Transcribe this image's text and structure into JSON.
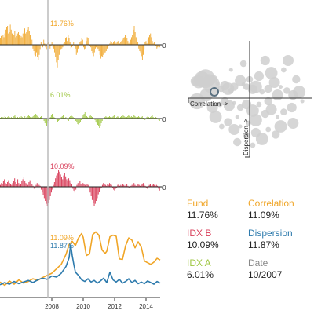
{
  "chart_data": [
    {
      "type": "bar",
      "name": "Fund",
      "color": "#f0a526",
      "marker_label": "11.76%",
      "zero_label": "0",
      "x_range": [
        2004.7,
        2014.9
      ],
      "values": [
        5,
        7,
        4,
        8,
        6,
        9,
        12,
        14,
        15,
        9,
        10,
        16,
        12,
        9,
        14,
        8,
        11,
        6,
        7,
        9,
        10,
        8,
        5,
        7,
        6,
        9,
        11,
        13,
        9,
        10,
        12,
        14,
        11,
        8,
        6,
        4,
        -3,
        -5,
        -8,
        -9,
        -6,
        -10,
        -12,
        -8,
        -4,
        2,
        3,
        -2,
        4,
        1,
        -2,
        -4,
        1,
        2,
        -1,
        -3,
        -1,
        2,
        -2,
        -3,
        -6,
        -10,
        -14,
        -18,
        -12,
        -8,
        -6,
        -4,
        -3,
        -2,
        1,
        2,
        5,
        6,
        3,
        8,
        5,
        2,
        -3,
        -2,
        -1,
        2,
        -1,
        -3,
        -8,
        -6,
        -3,
        -1,
        2,
        3,
        5,
        4,
        -2,
        -4,
        -3,
        3,
        6,
        5,
        2,
        -1,
        -2,
        -5,
        -7,
        -9,
        -6,
        -3,
        -2,
        -4,
        -3,
        -5,
        -8,
        -11,
        -9,
        -10,
        -8,
        -7,
        -6,
        -5,
        -3,
        -2,
        -1,
        1,
        3,
        2,
        1,
        2,
        3,
        2,
        1,
        2,
        3,
        4,
        1,
        2,
        3,
        4,
        5,
        6,
        8,
        7,
        5,
        3,
        1,
        2,
        4,
        6,
        8,
        12,
        15,
        10,
        6,
        3,
        2,
        -3,
        -5,
        -6,
        -9,
        -12,
        -8,
        -4,
        2,
        3,
        1,
        4,
        6,
        8,
        9,
        6,
        3,
        1,
        2,
        4,
        -1,
        -3,
        -2,
        -1,
        -2
      ],
      "ylim": [
        -22,
        22
      ]
    },
    {
      "type": "bar",
      "name": "IDX A",
      "color": "#9dc63f",
      "marker_label": "6.01%",
      "zero_label": "0",
      "x_range": [
        2004.7,
        2014.9
      ],
      "values": [
        1,
        2,
        1,
        2,
        1,
        3,
        2,
        1,
        2,
        3,
        2,
        1,
        2,
        1,
        2,
        3,
        4,
        2,
        1,
        2,
        1,
        2,
        1,
        3,
        2,
        1,
        2,
        3,
        1,
        2,
        3,
        4,
        3,
        2,
        1,
        2,
        3,
        4,
        5,
        6,
        4,
        3,
        2,
        1,
        2,
        3,
        1,
        -1,
        -3,
        -6,
        -8,
        -10,
        -6,
        -3,
        -1,
        2,
        4,
        6,
        3,
        2,
        1,
        -1,
        -2,
        -4,
        -3,
        -2,
        -1,
        2,
        3,
        4,
        2,
        1,
        2,
        -1,
        -2,
        -3,
        2,
        3,
        4,
        3,
        2,
        1,
        -2,
        -3,
        -5,
        -7,
        -8,
        -6,
        -4,
        -2,
        2,
        4,
        6,
        8,
        5,
        3,
        2,
        1,
        3,
        4,
        3,
        2,
        1,
        -1,
        -2,
        -4,
        -6,
        -8,
        -10,
        -12,
        -9,
        -6,
        -3,
        -1,
        1,
        2,
        3,
        2,
        1,
        2,
        3,
        2,
        1,
        2,
        3,
        4,
        2,
        1,
        2,
        3,
        2,
        1,
        2,
        3,
        2,
        4,
        3,
        2,
        3,
        2,
        3,
        4,
        3,
        2,
        3,
        2,
        4,
        5,
        3,
        2,
        1,
        2,
        3,
        2,
        1,
        2,
        3,
        1,
        -1,
        -2,
        -1,
        2,
        3,
        2,
        1,
        2,
        3,
        4,
        2,
        1,
        3,
        2,
        1,
        -1,
        -2,
        -3
      ],
      "ylim": [
        -22,
        22
      ]
    },
    {
      "type": "bar",
      "name": "IDX B",
      "color": "#d9415c",
      "marker_label": "10.09%",
      "zero_label": "0",
      "x_range": [
        2004.7,
        2014.9
      ],
      "values": [
        2,
        4,
        3,
        6,
        8,
        4,
        3,
        5,
        7,
        4,
        3,
        2,
        4,
        6,
        9,
        5,
        3,
        8,
        4,
        2,
        3,
        6,
        8,
        10,
        6,
        4,
        3,
        2,
        5,
        7,
        4,
        3,
        1,
        -2,
        -1,
        2,
        4,
        3,
        2,
        1,
        -3,
        -6,
        -9,
        -12,
        -15,
        -18,
        -20,
        -17,
        -14,
        -10,
        -6,
        -3,
        2,
        5,
        9,
        12,
        14,
        18,
        16,
        13,
        10,
        8,
        12,
        15,
        11,
        8,
        6,
        9,
        7,
        4,
        3,
        -2,
        -4,
        -6,
        -3,
        2,
        4,
        5,
        6,
        3,
        2,
        4,
        3,
        2,
        1,
        3,
        2,
        -3,
        -6,
        -10,
        -14,
        -17,
        -20,
        -18,
        -15,
        -12,
        -8,
        -5,
        -2,
        -1,
        2,
        4,
        3,
        2,
        1,
        3,
        2,
        4,
        3,
        2,
        -1,
        -3,
        -4,
        -2,
        -1,
        2,
        3,
        1,
        2,
        1,
        3,
        2,
        1,
        2,
        3,
        1,
        -1,
        -2,
        1,
        2,
        3,
        4,
        2,
        1,
        2,
        3,
        2,
        1,
        2,
        3,
        4,
        2,
        1,
        -1,
        -2,
        1,
        2,
        3,
        1,
        2,
        3,
        2,
        1,
        2,
        1,
        -2,
        -4
      ],
      "ylim": [
        -22,
        22
      ]
    },
    {
      "type": "line",
      "xlim": [
        2004.7,
        2014.9
      ],
      "ylim": [
        0,
        13.8
      ],
      "x_ticks": [
        2008,
        2010,
        2012,
        2014
      ],
      "x_tick_labels": [
        "2008",
        "2010",
        "2012",
        "2014"
      ],
      "series": [
        {
          "name": "Correlation",
          "color": "#f0a526",
          "end_label": "11.09%",
          "x": [
            2004.7,
            2005.0,
            2005.3,
            2005.6,
            2005.9,
            2006.2,
            2006.5,
            2006.8,
            2007.1,
            2007.4,
            2007.7,
            2008.0,
            2008.3,
            2008.6,
            2008.9,
            2009.1,
            2009.3,
            2009.5,
            2009.7,
            2009.9,
            2010.0,
            2010.2,
            2010.4,
            2010.6,
            2010.8,
            2011.0,
            2011.2,
            2011.4,
            2011.5,
            2011.7,
            2011.9,
            2012.1,
            2012.3,
            2012.5,
            2012.7,
            2012.9,
            2013.1,
            2013.3,
            2013.5,
            2013.7,
            2013.9,
            2014.1,
            2014.3,
            2014.5,
            2014.7,
            2014.9
          ],
          "y": [
            2.8,
            2.2,
            3.0,
            2.4,
            3.2,
            2.6,
            2.9,
            3.4,
            3.1,
            3.6,
            4.0,
            4.4,
            5.2,
            6.0,
            7.8,
            9.6,
            10.2,
            9.4,
            10.8,
            11.6,
            10.9,
            7.6,
            7.9,
            11.4,
            11.9,
            11.3,
            8.6,
            8.0,
            8.4,
            11.0,
            11.3,
            11.1,
            7.0,
            6.9,
            9.4,
            10.8,
            10.4,
            9.0,
            10.1,
            9.1,
            6.6,
            6.3,
            6.0,
            6.4,
            7.1,
            6.8
          ]
        },
        {
          "name": "Dispersion",
          "color": "#2e7bad",
          "end_label": "11.87%",
          "x": [
            2004.7,
            2005.0,
            2005.3,
            2005.6,
            2005.9,
            2006.2,
            2006.5,
            2006.8,
            2007.1,
            2007.4,
            2007.7,
            2008.0,
            2008.3,
            2008.6,
            2008.9,
            2009.1,
            2009.2,
            2009.3,
            2009.4,
            2009.5,
            2009.7,
            2009.9,
            2010.1,
            2010.3,
            2010.5,
            2010.7,
            2010.9,
            2011.1,
            2011.3,
            2011.5,
            2011.7,
            2011.9,
            2012.1,
            2012.3,
            2012.5,
            2012.7,
            2012.9,
            2013.1,
            2013.3,
            2013.5,
            2013.7,
            2013.9,
            2014.1,
            2014.3,
            2014.5,
            2014.7,
            2014.9
          ],
          "y": [
            2.3,
            2.7,
            2.4,
            2.9,
            2.5,
            2.8,
            3.1,
            2.7,
            3.2,
            3.5,
            3.3,
            3.9,
            3.7,
            4.4,
            5.6,
            7.2,
            9.6,
            7.6,
            6.0,
            4.6,
            4.0,
            3.2,
            2.9,
            3.4,
            2.8,
            3.1,
            2.6,
            3.0,
            3.5,
            2.7,
            4.6,
            3.2,
            2.8,
            3.3,
            2.6,
            2.9,
            3.4,
            2.7,
            3.1,
            2.5,
            2.8,
            2.5,
            3.0,
            2.7,
            2.4,
            2.9,
            2.6
          ]
        }
      ]
    },
    {
      "type": "scatter",
      "x_axis_label": "Correlation ->",
      "y_axis_label": "Dispersion ->",
      "xlim": [
        -1,
        1
      ],
      "ylim": [
        -1,
        1
      ],
      "selected_point": [
        -0.57,
        0.1
      ],
      "points": [
        [
          -0.87,
          0.27
        ],
        [
          -0.82,
          0.26
        ],
        [
          -0.77,
          0.3
        ],
        [
          -0.71,
          0.31
        ],
        [
          -0.65,
          0.29
        ],
        [
          -0.58,
          0.3
        ],
        [
          -0.62,
          0.22
        ],
        [
          -0.52,
          0.23
        ],
        [
          -0.46,
          0.15
        ],
        [
          -0.4,
          0.2
        ],
        [
          -0.35,
          0.15
        ],
        [
          -0.3,
          0.12
        ],
        [
          -0.25,
          0.18
        ],
        [
          -0.15,
          0.28
        ],
        [
          -0.1,
          0.22
        ],
        [
          -0.05,
          0.18
        ],
        [
          0.05,
          0.14
        ],
        [
          0.1,
          0.18
        ],
        [
          0.2,
          0.1
        ],
        [
          0.3,
          0.15
        ],
        [
          0.4,
          0.25
        ],
        [
          0.5,
          0.18
        ],
        [
          0.6,
          0.12
        ],
        [
          0.7,
          0.05
        ],
        [
          0.8,
          0.1
        ],
        [
          -0.48,
          -0.1
        ],
        [
          -0.4,
          -0.05
        ],
        [
          -0.33,
          -0.12
        ],
        [
          -0.25,
          -0.08
        ],
        [
          -0.15,
          -0.15
        ],
        [
          -0.05,
          -0.1
        ],
        [
          0.05,
          -0.2
        ],
        [
          0.15,
          -0.1
        ],
        [
          0.25,
          -0.25
        ],
        [
          0.35,
          -0.18
        ],
        [
          0.45,
          -0.3
        ],
        [
          0.55,
          -0.22
        ],
        [
          0.68,
          -0.15
        ],
        [
          -0.55,
          -0.3
        ],
        [
          -0.45,
          -0.45
        ],
        [
          -0.35,
          -0.38
        ],
        [
          -0.25,
          -0.5
        ],
        [
          -0.15,
          -0.45
        ],
        [
          -0.05,
          -0.6
        ],
        [
          0.1,
          -0.55
        ],
        [
          0.2,
          -0.65
        ],
        [
          0.3,
          -0.5
        ],
        [
          0.42,
          -0.58
        ],
        [
          -0.6,
          -0.15
        ],
        [
          -0.2,
          -0.3
        ],
        [
          0.0,
          0.3
        ],
        [
          0.15,
          0.35
        ],
        [
          0.35,
          0.4
        ],
        [
          0.55,
          0.45
        ],
        [
          0.75,
          0.3
        ],
        [
          0.62,
          0.6
        ],
        [
          -0.3,
          0.45
        ],
        [
          -0.1,
          0.55
        ],
        [
          0.25,
          0.6
        ],
        [
          0.5,
          -0.45
        ],
        [
          0.05,
          -0.75
        ],
        [
          -0.2,
          -0.7
        ],
        [
          0.7,
          -0.4
        ],
        [
          0.85,
          -0.05
        ],
        [
          -0.7,
          0.05
        ],
        [
          -0.85,
          -0.05
        ],
        [
          0.1,
          -0.35
        ],
        [
          -0.02,
          -0.4
        ],
        [
          0.3,
          -0.05
        ],
        [
          0.45,
          0.05
        ]
      ]
    }
  ],
  "legend": [
    {
      "name": "Fund",
      "value": "11.76%",
      "color": "#f0a526"
    },
    {
      "name": "Correlation",
      "value": "11.09%",
      "color": "#f0a526"
    },
    {
      "name": "IDX B",
      "value": "10.09%",
      "color": "#d9415c"
    },
    {
      "name": "Dispersion",
      "value": "11.87%",
      "color": "#2e7bad"
    },
    {
      "name": "IDX A",
      "value": "6.01%",
      "color": "#9dc63f"
    },
    {
      "name": "Date",
      "value": "10/2007",
      "color": "#888888"
    }
  ]
}
